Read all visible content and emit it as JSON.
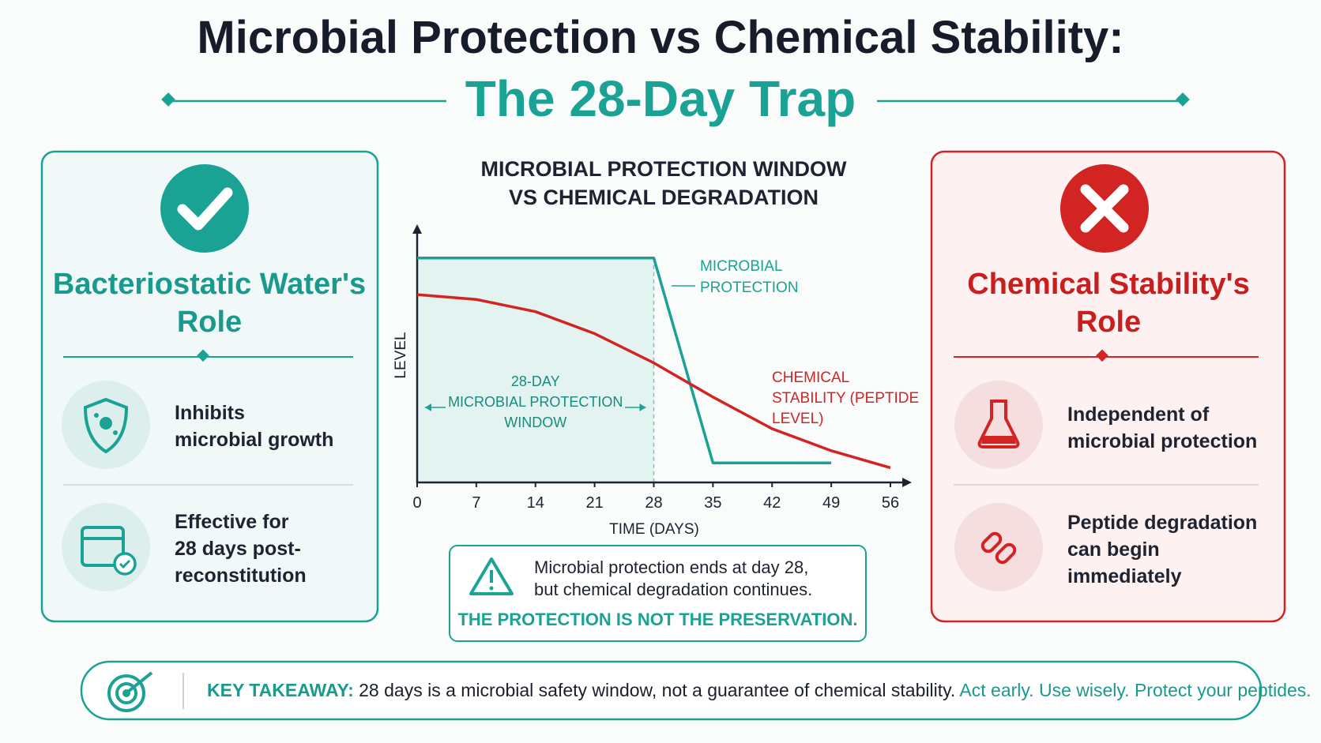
{
  "header": {
    "title": "Microbial Protection vs Chemical Stability:",
    "subtitle": "The 28-Day Trap"
  },
  "left_panel": {
    "title": "Bacteriostatic Water's Role",
    "items": [
      [
        "Inhibits",
        "microbial growth"
      ],
      [
        "Effective for",
        "28 days post-",
        "reconstitution"
      ]
    ]
  },
  "right_panel": {
    "title": "Chemical Stability's Role",
    "items": [
      [
        "Independent of",
        "microbial protection"
      ],
      [
        "Peptide degradation",
        "can begin",
        "immediately"
      ]
    ]
  },
  "chart_data": {
    "type": "line",
    "title": [
      "MICROBIAL PROTECTION WINDOW",
      "VS CHEMICAL DEGRADATION"
    ],
    "x_label": "TIME (DAYS)",
    "y_label": "LEVEL",
    "x": [
      0,
      7,
      14,
      21,
      28,
      35,
      42,
      49,
      56
    ],
    "series": [
      {
        "name": "MICROBIAL PROTECTION",
        "color": "#1aa394",
        "values": [
          92,
          92,
          92,
          92,
          92,
          8,
          8,
          8,
          null
        ]
      },
      {
        "name": "CHEMICAL STABILITY (PEPTIDE LEVEL)",
        "color": "#d32424",
        "values": [
          77,
          75,
          70,
          61,
          49,
          35,
          22,
          13,
          6
        ]
      }
    ],
    "window": {
      "label": [
        "28-DAY",
        "MICROBIAL PROTECTION",
        "WINDOW"
      ],
      "start": 0,
      "end": 28
    },
    "xlim": [
      0,
      56
    ],
    "xticks": [
      0,
      7,
      14,
      21,
      28,
      35,
      42,
      49,
      56
    ],
    "ylim": [
      0,
      100
    ]
  },
  "note": {
    "lines": [
      "Microbial protection ends at day 28,",
      "but chemical degradation continues."
    ],
    "emphasis": "THE PROTECTION IS NOT THE PRESERVATION."
  },
  "takeaway": {
    "label": "KEY TAKEAWAY:",
    "text": "28 days is a microbial safety window, not a guarantee of chemical stability.",
    "emphasis": "Act early. Use wisely. Protect your peptides."
  }
}
